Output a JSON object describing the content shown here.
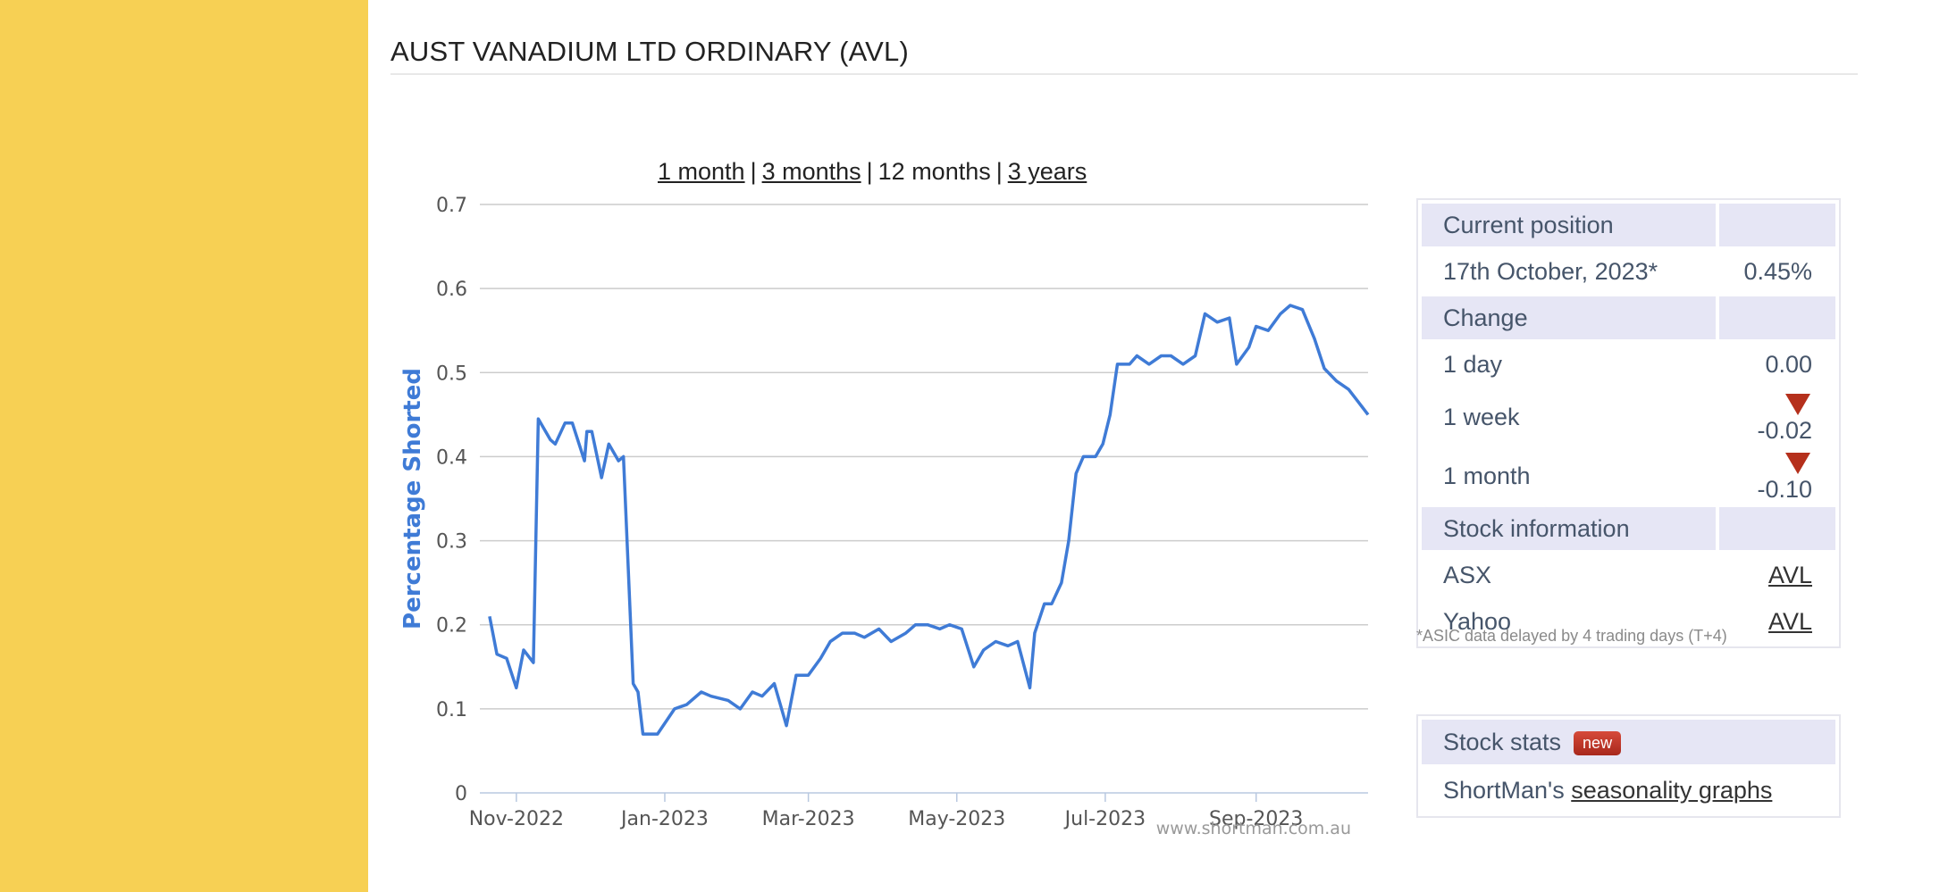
{
  "page": {
    "title": "AUST VANADIUM LTD ORDINARY (AVL)"
  },
  "range_nav": {
    "items": [
      {
        "label": "1 month",
        "active": false
      },
      {
        "label": "3 months",
        "active": false
      },
      {
        "label": "12 months",
        "active": true
      },
      {
        "label": "3 years",
        "active": false
      }
    ],
    "separator": "|"
  },
  "info": {
    "current_position_label": "Current position",
    "date_label": "17th October, 2023*",
    "date_value": "0.45%",
    "change_label": "Change",
    "day_label": "1 day",
    "day_value": "0.00",
    "week_label": "1 week",
    "week_value": "-0.02",
    "month_label": "1 month",
    "month_value": "-0.10",
    "stock_info_label": "Stock information",
    "asx_label": "ASX",
    "asx_value": "AVL",
    "yahoo_label": "Yahoo",
    "yahoo_value": "AVL",
    "footnote": "*ASIC data delayed by 4 trading days (T+4)"
  },
  "stats": {
    "label": "Stock stats",
    "badge": "new",
    "seasonality_prefix": "ShortMan's",
    "seasonality_link": "seasonality graphs"
  },
  "colors": {
    "sidebar": "#f7d054",
    "line": "#3f7bd6",
    "down": "#b5301c"
  },
  "chart_data": {
    "type": "line",
    "ylabel": "Percentage Shorted",
    "ylim": [
      0,
      0.7
    ],
    "yticks": [
      0,
      0.1,
      0.2,
      0.3,
      0.4,
      0.5,
      0.6,
      0.7
    ],
    "xlim": [
      "2022-10-17",
      "2023-10-17"
    ],
    "xticks": [
      {
        "date": "2022-11-01",
        "label": "Nov-2022"
      },
      {
        "date": "2023-01-01",
        "label": "Jan-2023"
      },
      {
        "date": "2023-03-01",
        "label": "Mar-2023"
      },
      {
        "date": "2023-05-01",
        "label": "May-2023"
      },
      {
        "date": "2023-07-01",
        "label": "Jul-2023"
      },
      {
        "date": "2023-09-01",
        "label": "Sep-2023"
      }
    ],
    "grid": true,
    "watermark": "www.shortman.com.au",
    "series": [
      {
        "x": [
          "2022-10-21",
          "2022-10-24",
          "2022-10-28",
          "2022-11-01",
          "2022-11-04",
          "2022-11-08",
          "2022-11-10",
          "2022-11-15",
          "2022-11-17",
          "2022-11-21",
          "2022-11-24",
          "2022-11-29",
          "2022-11-30",
          "2022-12-02",
          "2022-12-06",
          "2022-12-09",
          "2022-12-13",
          "2022-12-15",
          "2022-12-19",
          "2022-12-21",
          "2022-12-23",
          "2022-12-29",
          "2023-01-05",
          "2023-01-10",
          "2023-01-16",
          "2023-01-20",
          "2023-01-27",
          "2023-02-01",
          "2023-02-06",
          "2023-02-10",
          "2023-02-15",
          "2023-02-20",
          "2023-02-24",
          "2023-03-01",
          "2023-03-06",
          "2023-03-10",
          "2023-03-15",
          "2023-03-20",
          "2023-03-24",
          "2023-03-30",
          "2023-04-04",
          "2023-04-10",
          "2023-04-14",
          "2023-04-19",
          "2023-04-24",
          "2023-04-28",
          "2023-05-03",
          "2023-05-08",
          "2023-05-12",
          "2023-05-17",
          "2023-05-22",
          "2023-05-26",
          "2023-05-31",
          "2023-06-02",
          "2023-06-06",
          "2023-06-09",
          "2023-06-13",
          "2023-06-16",
          "2023-06-19",
          "2023-06-22",
          "2023-06-27",
          "2023-06-30",
          "2023-07-03",
          "2023-07-06",
          "2023-07-11",
          "2023-07-14",
          "2023-07-19",
          "2023-07-24",
          "2023-07-28",
          "2023-08-02",
          "2023-08-07",
          "2023-08-11",
          "2023-08-16",
          "2023-08-21",
          "2023-08-24",
          "2023-08-29",
          "2023-09-01",
          "2023-09-06",
          "2023-09-11",
          "2023-09-15",
          "2023-09-20",
          "2023-09-25",
          "2023-09-29",
          "2023-10-04",
          "2023-10-09",
          "2023-10-13",
          "2023-10-17"
        ],
        "y": [
          0.21,
          0.165,
          0.16,
          0.125,
          0.17,
          0.155,
          0.445,
          0.42,
          0.415,
          0.44,
          0.44,
          0.395,
          0.43,
          0.43,
          0.375,
          0.415,
          0.395,
          0.4,
          0.13,
          0.12,
          0.07,
          0.07,
          0.1,
          0.105,
          0.12,
          0.115,
          0.11,
          0.1,
          0.12,
          0.115,
          0.13,
          0.08,
          0.14,
          0.14,
          0.16,
          0.18,
          0.19,
          0.19,
          0.185,
          0.195,
          0.18,
          0.19,
          0.2,
          0.2,
          0.195,
          0.2,
          0.195,
          0.15,
          0.17,
          0.18,
          0.175,
          0.18,
          0.125,
          0.19,
          0.225,
          0.225,
          0.25,
          0.3,
          0.38,
          0.4,
          0.4,
          0.415,
          0.45,
          0.51,
          0.51,
          0.52,
          0.51,
          0.52,
          0.52,
          0.51,
          0.52,
          0.57,
          0.56,
          0.565,
          0.51,
          0.53,
          0.555,
          0.55,
          0.57,
          0.58,
          0.575,
          0.54,
          0.505,
          0.49,
          0.48,
          0.465,
          0.45
        ]
      }
    ]
  }
}
